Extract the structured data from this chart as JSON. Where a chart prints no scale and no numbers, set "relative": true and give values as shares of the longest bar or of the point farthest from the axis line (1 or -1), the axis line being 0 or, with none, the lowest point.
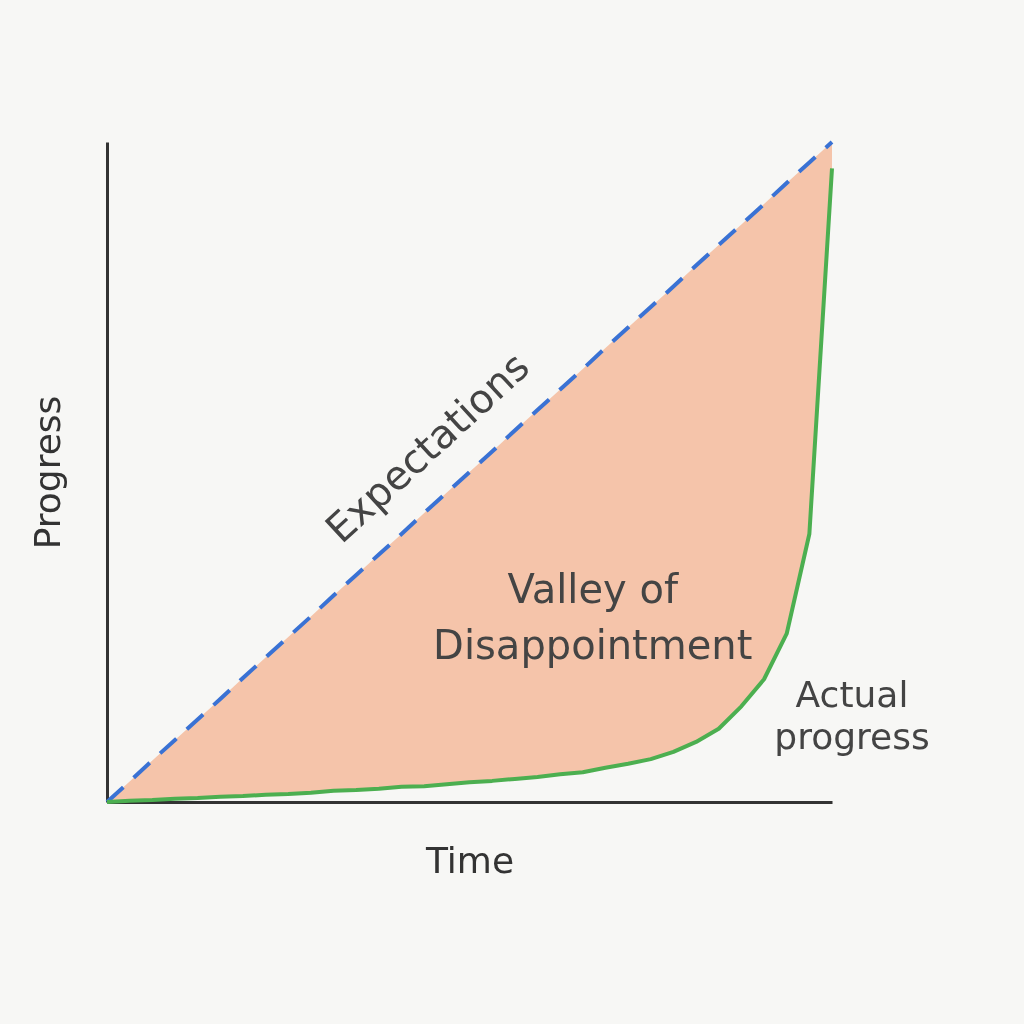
{
  "chart_data": {
    "type": "line",
    "relative": true,
    "xlabel": "Time",
    "ylabel": "Progress",
    "legend": false,
    "grid": false,
    "categories": [
      null,
      null,
      null,
      null,
      null,
      null,
      null,
      null,
      null,
      null,
      null,
      null,
      null,
      null,
      null,
      null,
      null,
      null,
      null,
      null,
      null,
      null,
      null,
      null,
      null,
      null,
      null,
      null,
      null,
      null,
      null,
      null,
      null
    ],
    "series": [
      {
        "name": "Expectations",
        "color": "#3a72d4",
        "line_style": "dashed",
        "values": [
          0,
          0.031,
          0.063,
          0.094,
          0.125,
          0.156,
          0.188,
          0.219,
          0.25,
          0.281,
          0.313,
          0.344,
          0.375,
          0.406,
          0.438,
          0.469,
          0.5,
          0.531,
          0.563,
          0.594,
          0.625,
          0.656,
          0.688,
          0.719,
          0.75,
          0.781,
          0.813,
          0.844,
          0.875,
          0.906,
          0.938,
          0.969,
          1
        ]
      },
      {
        "name": "Actual progress",
        "color": "#4caf50",
        "line_style": "solid",
        "values": [
          0,
          0.002,
          0.003,
          0.005,
          0.006,
          0.008,
          0.009,
          0.011,
          0.012,
          0.014,
          0.017,
          0.018,
          0.02,
          0.023,
          0.024,
          0.027,
          0.03,
          0.032,
          0.035,
          0.038,
          0.042,
          0.045,
          0.052,
          0.058,
          0.065,
          0.076,
          0.091,
          0.111,
          0.145,
          0.186,
          0.255,
          0.406,
          0.96
        ],
        "lower": [
          0,
          0.002,
          0.003,
          0.005,
          0.006,
          0.008,
          0.009,
          0.011,
          0.012,
          0.014,
          0.017,
          0.018,
          0.02,
          0.023,
          0.024,
          0.027,
          0.03,
          0.032,
          0.035,
          0.038,
          0.042,
          0.045,
          0.052,
          0.058,
          0.065,
          0.076,
          0.091,
          0.111,
          0.145,
          0.186,
          0.255,
          0.406,
          0.96
        ],
        "upper": [
          0,
          0.031,
          0.063,
          0.094,
          0.125,
          0.156,
          0.188,
          0.219,
          0.25,
          0.281,
          0.313,
          0.344,
          0.375,
          0.406,
          0.438,
          0.469,
          0.5,
          0.531,
          0.563,
          0.594,
          0.625,
          0.656,
          0.688,
          0.719,
          0.75,
          0.781,
          0.813,
          0.844,
          0.875,
          0.906,
          0.938,
          0.969,
          1
        ]
      }
    ],
    "annotations": [
      "Valley of Disappointment"
    ]
  }
}
